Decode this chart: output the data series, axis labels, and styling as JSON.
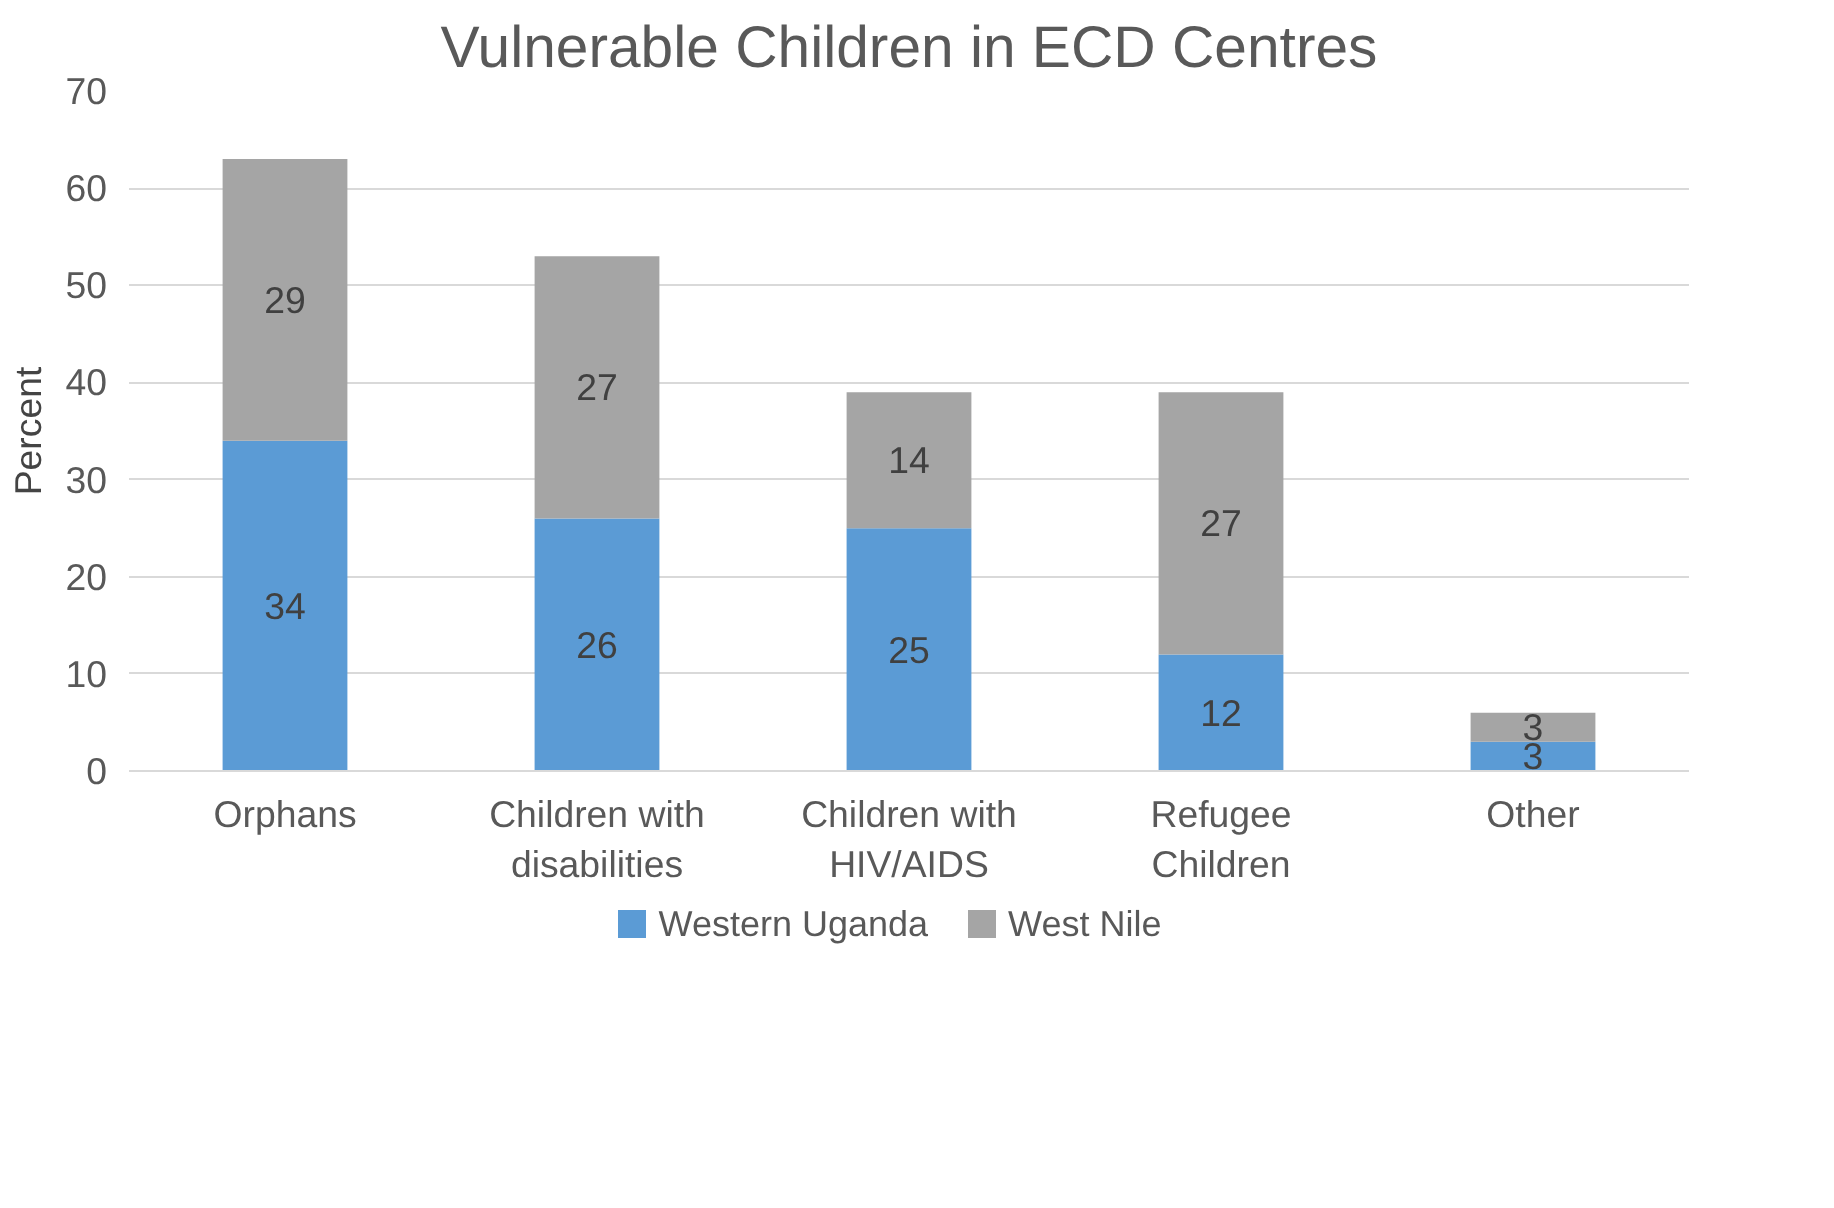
{
  "chart_data": {
    "type": "bar",
    "title": "Vulnerable Children in ECD Centres",
    "ylabel": "Percent",
    "categories": [
      "Orphans",
      "Children with\ndisabilities",
      "Children with\nHIV/AIDS",
      "Refugee\nChildren",
      "Other"
    ],
    "series": [
      {
        "name": "Western Uganda",
        "color": "#5b9bd5",
        "values": [
          34,
          26,
          25,
          12,
          3
        ]
      },
      {
        "name": "West Nile",
        "color": "#a5a5a5",
        "values": [
          29,
          27,
          14,
          27,
          3
        ]
      }
    ],
    "stacked": true,
    "ylim": [
      0,
      70
    ],
    "yticks": [
      0,
      10,
      20,
      30,
      40,
      50,
      60,
      70
    ],
    "grid": "y",
    "legend": "bottom",
    "data_labels": true
  }
}
